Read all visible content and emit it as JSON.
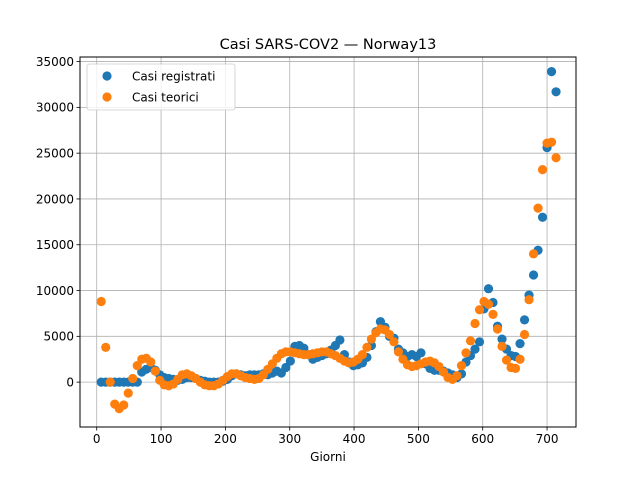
{
  "chart_data": {
    "type": "scatter",
    "title": "Casi SARS-COV2 — Norway13",
    "xlabel": "Giorni",
    "ylabel": "",
    "xlim": [
      -26,
      745
    ],
    "ylim": [
      -4900,
      35500
    ],
    "xticks": [
      0,
      100,
      200,
      300,
      400,
      500,
      600,
      700
    ],
    "yticks": [
      0,
      5000,
      10000,
      15000,
      20000,
      25000,
      30000,
      35000
    ],
    "grid": true,
    "legend": "top-left",
    "series": [
      {
        "name": "Casi registrati",
        "color": "#1f77b4",
        "x": [
          7,
          14,
          21,
          28,
          35,
          42,
          49,
          56,
          63,
          70,
          77,
          84,
          91,
          98,
          105,
          112,
          119,
          126,
          133,
          140,
          147,
          154,
          161,
          168,
          175,
          182,
          189,
          196,
          203,
          210,
          217,
          224,
          231,
          238,
          245,
          252,
          259,
          266,
          273,
          280,
          287,
          294,
          301,
          308,
          315,
          322,
          329,
          336,
          343,
          350,
          357,
          364,
          371,
          378,
          385,
          392,
          399,
          406,
          413,
          420,
          427,
          434,
          441,
          448,
          455,
          462,
          469,
          476,
          483,
          490,
          497,
          504,
          511,
          518,
          525,
          532,
          539,
          546,
          553,
          560,
          567,
          574,
          581,
          588,
          595,
          602,
          609,
          616,
          623,
          630,
          637,
          644,
          651,
          658,
          665,
          672,
          679,
          686,
          693,
          700,
          707,
          714
        ],
        "y": [
          0,
          0,
          0,
          0,
          0,
          0,
          0,
          0,
          0,
          1100,
          1400,
          1600,
          1300,
          800,
          500,
          400,
          300,
          200,
          300,
          500,
          500,
          400,
          200,
          100,
          0,
          0,
          0,
          100,
          300,
          700,
          900,
          800,
          700,
          800,
          800,
          800,
          900,
          800,
          1000,
          1200,
          1000,
          1600,
          2300,
          3900,
          4000,
          3700,
          3000,
          2500,
          2700,
          2900,
          3100,
          3500,
          4000,
          4600,
          3000,
          2200,
          1800,
          1900,
          2100,
          2700,
          4000,
          5500,
          6600,
          6000,
          5000,
          4800,
          3600,
          3200,
          2800,
          3000,
          2800,
          3200,
          2000,
          1500,
          1300,
          1300,
          1200,
          1000,
          800,
          500,
          900,
          2200,
          2900,
          3600,
          4400,
          8000,
          10200,
          8700,
          6100,
          4700,
          3600,
          2900,
          2800,
          4200,
          6800,
          9500,
          11700,
          14400,
          18000,
          25600,
          33900,
          31700
        ]
      },
      {
        "name": "Casi teorici",
        "color": "#ff7f0e",
        "x": [
          7,
          14,
          21,
          28,
          35,
          42,
          49,
          56,
          63,
          70,
          77,
          84,
          91,
          98,
          105,
          112,
          119,
          126,
          133,
          140,
          147,
          154,
          161,
          168,
          175,
          182,
          189,
          196,
          203,
          210,
          217,
          224,
          231,
          238,
          245,
          252,
          259,
          266,
          273,
          280,
          287,
          294,
          301,
          308,
          315,
          322,
          329,
          336,
          343,
          350,
          357,
          364,
          371,
          378,
          385,
          392,
          399,
          406,
          413,
          420,
          427,
          434,
          441,
          448,
          455,
          462,
          469,
          476,
          483,
          490,
          497,
          504,
          511,
          518,
          525,
          532,
          539,
          546,
          553,
          560,
          567,
          574,
          581,
          588,
          595,
          602,
          609,
          616,
          623,
          630,
          637,
          644,
          651,
          658,
          665,
          672,
          679,
          686,
          693,
          700,
          707,
          714
        ],
        "y": [
          8800,
          3800,
          0,
          -2400,
          -2900,
          -2500,
          -1200,
          400,
          1800,
          2500,
          2600,
          2200,
          1200,
          200,
          -300,
          -400,
          -200,
          300,
          800,
          900,
          700,
          400,
          0,
          -300,
          -400,
          -400,
          -200,
          200,
          600,
          900,
          900,
          700,
          500,
          400,
          300,
          400,
          800,
          1400,
          2000,
          2600,
          3100,
          3300,
          3300,
          3200,
          3100,
          3000,
          3000,
          3100,
          3200,
          3300,
          3300,
          3100,
          2900,
          2600,
          2300,
          2100,
          2200,
          2500,
          3000,
          3800,
          4700,
          5400,
          5800,
          5700,
          5200,
          4400,
          3300,
          2500,
          1900,
          1700,
          1800,
          2000,
          2200,
          2300,
          2100,
          1700,
          1100,
          500,
          300,
          700,
          1800,
          3200,
          4500,
          6400,
          7900,
          8800,
          8500,
          7400,
          5800,
          3900,
          2400,
          1600,
          1500,
          2500,
          5200,
          9000,
          14000,
          19000,
          23200,
          26100,
          26200,
          24500
        ]
      }
    ]
  }
}
